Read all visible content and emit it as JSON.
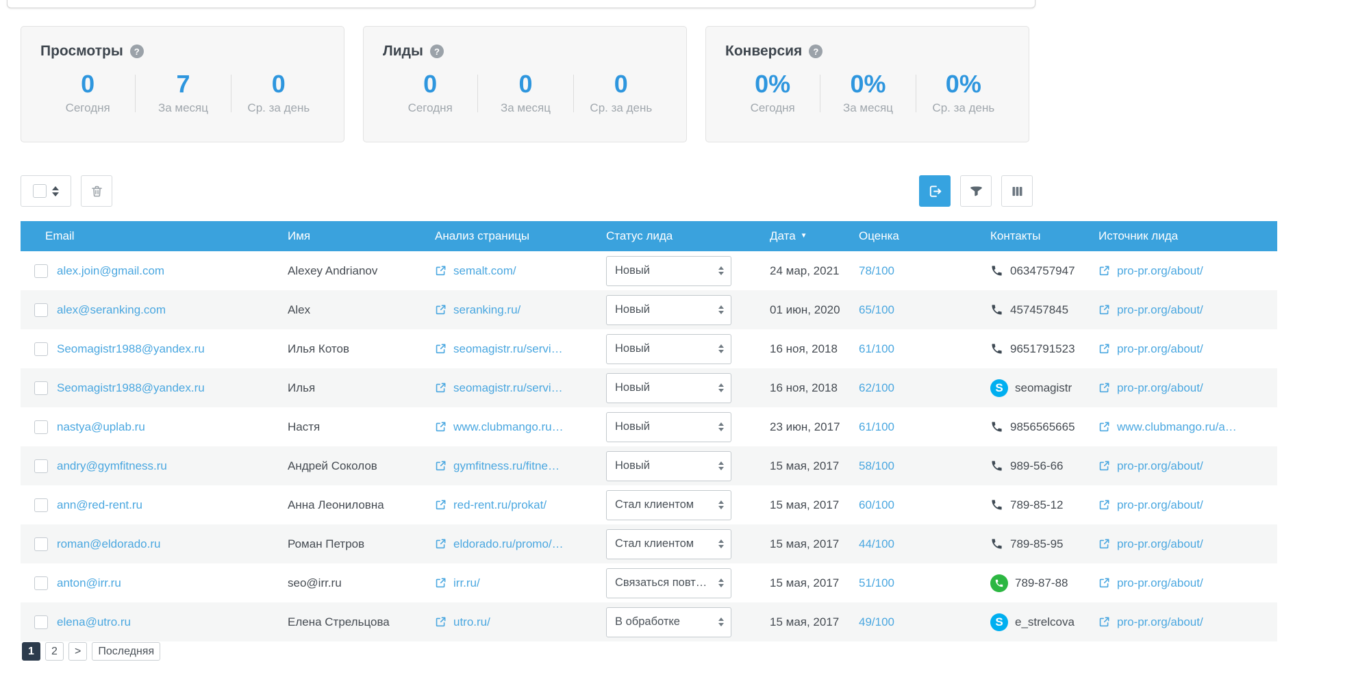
{
  "colors": {
    "header_blue": "#3aa2dd",
    "accent_blue": "#36a3e0",
    "link_blue": "#4aa7e0",
    "text_dark": "#454b52",
    "text_muted": "#a0a7ad",
    "row_alt": "#f5f6f6",
    "pagination_active": "#2c3b4c",
    "skype_blue": "#00aff0",
    "whatsapp_green": "#2cb742"
  },
  "glyphs": {
    "help": "?",
    "sort_down": "▼"
  },
  "stats": [
    {
      "title": "Просмотры",
      "help_icon": "question-icon",
      "items": [
        {
          "value": "0",
          "label": "Сегодня"
        },
        {
          "value": "7",
          "label": "За месяц"
        },
        {
          "value": "0",
          "label": "Ср. за день"
        }
      ]
    },
    {
      "title": "Лиды",
      "help_icon": "question-icon",
      "items": [
        {
          "value": "0",
          "label": "Сегодня"
        },
        {
          "value": "0",
          "label": "За месяц"
        },
        {
          "value": "0",
          "label": "Ср. за день"
        }
      ]
    },
    {
      "title": "Конверсия",
      "help_icon": "question-icon",
      "items": [
        {
          "value": "0%",
          "label": "Сегодня"
        },
        {
          "value": "0%",
          "label": "За месяц"
        },
        {
          "value": "0%",
          "label": "Ср. за день"
        }
      ]
    }
  ],
  "toolbar": {
    "buttons": [
      {
        "name": "select-all-dropdown",
        "icon": "checkbox-sort-arrows-icon"
      },
      {
        "name": "delete-button",
        "icon": "trash-icon"
      },
      {
        "name": "export-button",
        "icon": "export-icon"
      },
      {
        "name": "filter-button",
        "icon": "funnel-icon"
      },
      {
        "name": "columns-button",
        "icon": "columns-icon"
      }
    ]
  },
  "table": {
    "headers": [
      {
        "label": "Email"
      },
      {
        "label": "Имя"
      },
      {
        "label": "Анализ страницы"
      },
      {
        "label": "Статус лида"
      },
      {
        "label": "Дата",
        "sort": "▼"
      },
      {
        "label": "Оценка"
      },
      {
        "label": "Контакты"
      },
      {
        "label": "Источник лида"
      }
    ],
    "rows": [
      {
        "email": "alex.join@gmail.com",
        "name": "Alexey Andrianov",
        "page": "semalt.com/",
        "status": "Новый",
        "date": "24 мар, 2021",
        "score": "78/100",
        "contact": {
          "type": "phone",
          "value": "0634757947"
        },
        "source": "pro-pr.org/about/"
      },
      {
        "email": "alex@seranking.com",
        "name": "Alex",
        "page": "seranking.ru/",
        "status": "Новый",
        "date": "01 июн, 2020",
        "score": "65/100",
        "contact": {
          "type": "phone",
          "value": "457457845"
        },
        "source": "pro-pr.org/about/"
      },
      {
        "email": "Seomagistr1988@yandex.ru",
        "name": "Илья Котов",
        "page": "seomagistr.ru/servi…",
        "status": "Новый",
        "date": "16 ноя, 2018",
        "score": "61/100",
        "contact": {
          "type": "phone",
          "value": "9651791523"
        },
        "source": "pro-pr.org/about/"
      },
      {
        "email": "Seomagistr1988@yandex.ru",
        "name": "Илья",
        "page": "seomagistr.ru/servi…",
        "status": "Новый",
        "date": "16 ноя, 2018",
        "score": "62/100",
        "contact": {
          "type": "skype",
          "value": "seomagistr"
        },
        "source": "pro-pr.org/about/"
      },
      {
        "email": "nastya@uplab.ru",
        "name": "Настя",
        "page": "www.clubmango.ru…",
        "status": "Новый",
        "date": "23 июн, 2017",
        "score": "61/100",
        "contact": {
          "type": "phone",
          "value": "9856565665"
        },
        "source": "www.clubmango.ru/a…"
      },
      {
        "email": "andry@gymfitness.ru",
        "name": "Андрей Соколов",
        "page": "gymfitness.ru/fitne…",
        "status": "Новый",
        "date": "15 мая, 2017",
        "score": "58/100",
        "contact": {
          "type": "phone",
          "value": "989-56-66"
        },
        "source": "pro-pr.org/about/"
      },
      {
        "email": "ann@red-rent.ru",
        "name": "Анна Леониловна",
        "page": "red-rent.ru/prokat/",
        "status": "Стал клиентом",
        "date": "15 мая, 2017",
        "score": "60/100",
        "contact": {
          "type": "phone",
          "value": "789-85-12"
        },
        "source": "pro-pr.org/about/"
      },
      {
        "email": "roman@eldorado.ru",
        "name": "Роман Петров",
        "page": "eldorado.ru/promo/…",
        "status": "Стал клиентом",
        "date": "15 мая, 2017",
        "score": "44/100",
        "contact": {
          "type": "phone",
          "value": "789-85-95"
        },
        "source": "pro-pr.org/about/"
      },
      {
        "email": "anton@irr.ru",
        "name": "seo@irr.ru",
        "page": "irr.ru/",
        "status": "Связаться повт…",
        "date": "15 мая, 2017",
        "score": "51/100",
        "contact": {
          "type": "whatsapp",
          "value": "789-87-88"
        },
        "source": "pro-pr.org/about/"
      },
      {
        "email": "elena@utro.ru",
        "name": "Елена Стрельцова",
        "page": "utro.ru/",
        "status": "В обработке",
        "date": "15 мая, 2017",
        "score": "49/100",
        "contact": {
          "type": "skype",
          "value": "e_strelcova"
        },
        "source": "pro-pr.org/about/"
      }
    ]
  },
  "pagination": {
    "items": [
      {
        "label": "1",
        "active": true
      },
      {
        "label": "2",
        "active": false
      },
      {
        "label": ">",
        "active": false
      },
      {
        "label": "Последняя",
        "active": false
      }
    ]
  }
}
